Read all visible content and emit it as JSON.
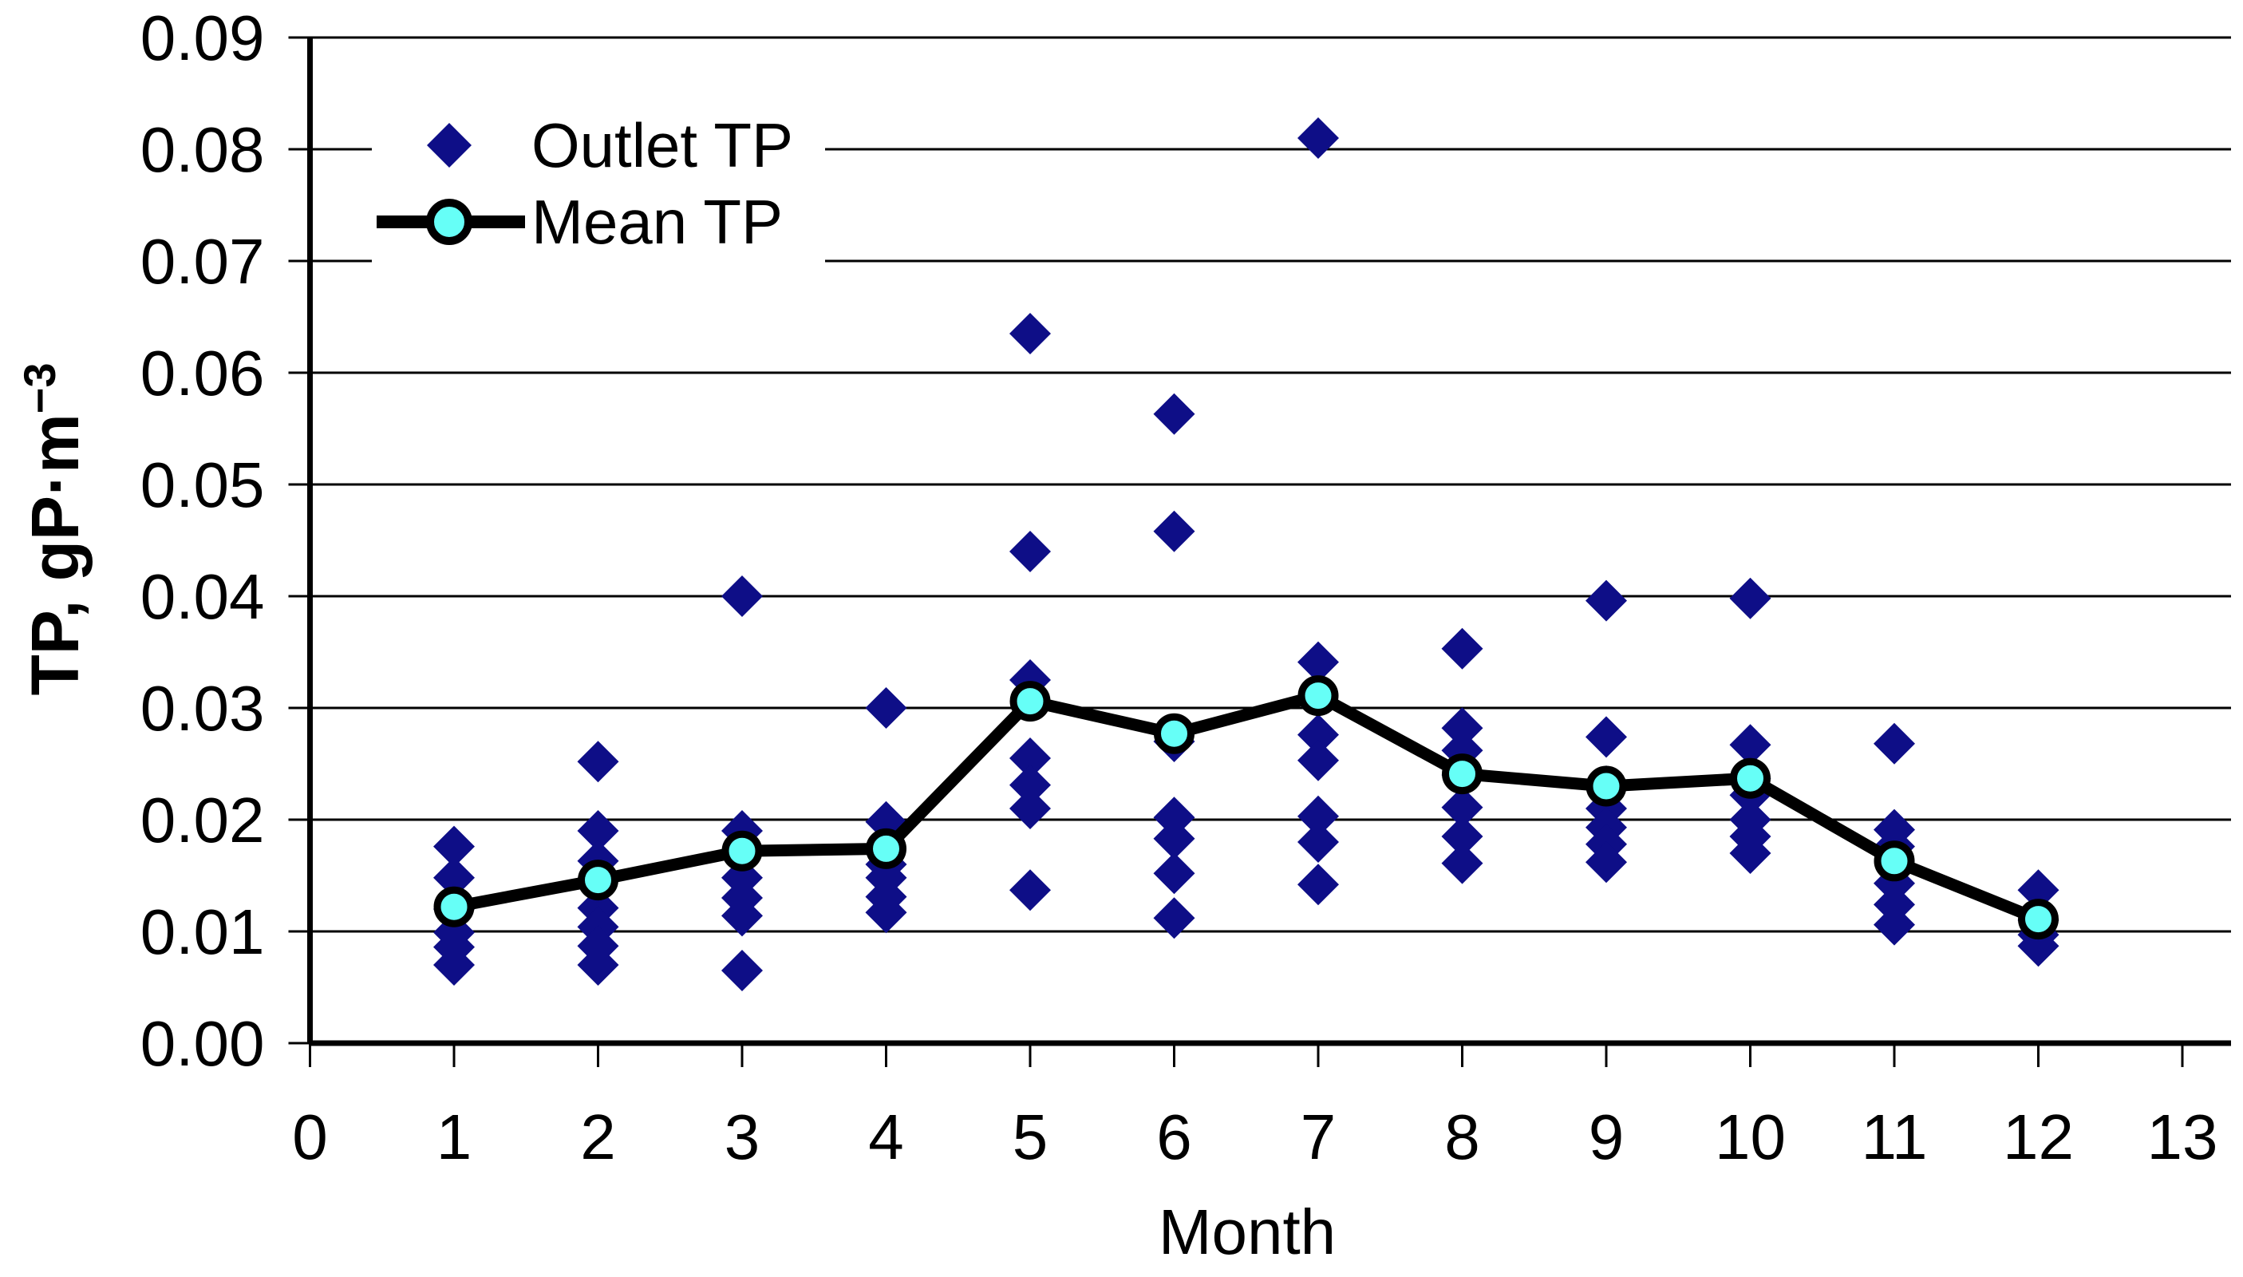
{
  "chart_data": {
    "type": "scatter",
    "title": "",
    "xlabel": "Month",
    "ylabel": "TP, gP·m⁻³",
    "ylabel_main": "TP, gP·m",
    "ylabel_sup": "−3",
    "xlim": [
      0,
      13
    ],
    "ylim": [
      0,
      0.09
    ],
    "x_tick_step": 1,
    "y_tick_step": 0.01,
    "y_tick_decimals": 2,
    "grid": "horizontal",
    "legend_position": "top-left",
    "colors": {
      "outlet_diamond": "#0E0E87",
      "mean_marker_fill": "#66FFF7",
      "mean_line": "#000000",
      "axis": "#000000",
      "background": "#FFFFFF"
    },
    "series": [
      {
        "name": "Outlet TP",
        "type": "scatter",
        "marker": "diamond",
        "points_by_month": [
          {
            "month": 1,
            "values": [
              0.0176,
              0.0148,
              0.012,
              0.0099,
              0.0086,
              0.007
            ]
          },
          {
            "month": 2,
            "values": [
              0.0252,
              0.019,
              0.0163,
              0.0146,
              0.0121,
              0.0104,
              0.0087,
              0.007
            ]
          },
          {
            "month": 3,
            "values": [
              0.04,
              0.019,
              0.0172,
              0.0148,
              0.013,
              0.0114,
              0.0065
            ]
          },
          {
            "month": 4,
            "values": [
              0.03,
              0.0198,
              0.016,
              0.0148,
              0.0131,
              0.0117
            ]
          },
          {
            "month": 5,
            "values": [
              0.0635,
              0.044,
              0.0325,
              0.0255,
              0.0231,
              0.021,
              0.0137
            ]
          },
          {
            "month": 6,
            "values": [
              0.0563,
              0.0458,
              0.027,
              0.0202,
              0.0183,
              0.0152,
              0.0112
            ]
          },
          {
            "month": 7,
            "values": [
              0.081,
              0.0341,
              0.0276,
              0.0253,
              0.0203,
              0.018,
              0.0142
            ]
          },
          {
            "month": 8,
            "values": [
              0.0353,
              0.0282,
              0.0262,
              0.024,
              0.0211,
              0.0185,
              0.0161
            ]
          },
          {
            "month": 9,
            "values": [
              0.0396,
              0.0274,
              0.023,
              0.021,
              0.0193,
              0.0178,
              0.0162
            ]
          },
          {
            "month": 10,
            "values": [
              0.0398,
              0.0267,
              0.0237,
              0.0222,
              0.02,
              0.0185,
              0.017
            ]
          },
          {
            "month": 11,
            "values": [
              0.0268,
              0.0191,
              0.0176,
              0.0143,
              0.0124,
              0.0106
            ]
          },
          {
            "month": 12,
            "values": [
              0.0137,
              0.011,
              0.0097,
              0.0087
            ]
          }
        ]
      },
      {
        "name": "Mean TP",
        "type": "line",
        "marker": "circle",
        "x": [
          1,
          2,
          3,
          4,
          5,
          6,
          7,
          8,
          9,
          10,
          11,
          12
        ],
        "y": [
          0.0122,
          0.0146,
          0.0172,
          0.0174,
          0.0306,
          0.0277,
          0.0311,
          0.0241,
          0.023,
          0.0237,
          0.0163,
          0.0111
        ]
      }
    ]
  }
}
